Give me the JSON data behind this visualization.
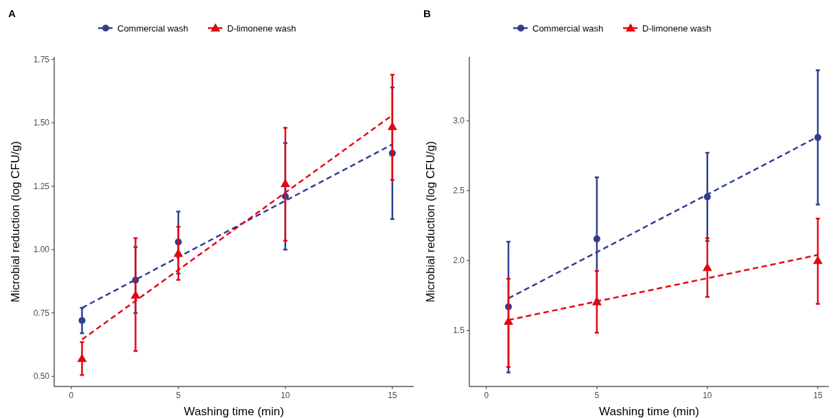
{
  "chart_data": [
    {
      "type": "scatter",
      "title": "A",
      "xlabel": "Washing time (min)",
      "ylabel": "Microbial reduction (log CFU/g)",
      "xlim": [
        -0.8,
        16
      ],
      "ylim": [
        0.46,
        1.76
      ],
      "xticks": [
        0,
        5,
        10,
        15
      ],
      "yticks": [
        {
          "value": 0.5,
          "label": "0.50"
        },
        {
          "value": 0.75,
          "label": "0.75"
        },
        {
          "value": 1.0,
          "label": "1.00"
        },
        {
          "value": 1.25,
          "label": "1.25"
        },
        {
          "value": 1.5,
          "label": "1.50"
        },
        {
          "value": 1.75,
          "label": "1.75"
        }
      ],
      "legend": "top",
      "series": [
        {
          "type": "line",
          "color": "#2e3f8f",
          "line_style": "dashed",
          "marker": "none",
          "x": [
            0.5,
            15
          ],
          "values": [
            0.77,
            1.415
          ]
        },
        {
          "type": "line",
          "color": "#e30613",
          "line_style": "dashed",
          "marker": "none",
          "x": [
            0.5,
            15
          ],
          "values": [
            0.645,
            1.53
          ]
        },
        {
          "name": "Commercial wash",
          "color": "#2e3f8f",
          "marker": "circle",
          "line_style": "dashed",
          "x": [
            0.5,
            3,
            5,
            10,
            15
          ],
          "values": [
            0.72,
            0.88,
            1.03,
            1.21,
            1.38
          ],
          "errors": [
            [
              0.67,
              0.77
            ],
            [
              0.75,
              1.01
            ],
            [
              0.905,
              1.15
            ],
            [
              1.0,
              1.42
            ],
            [
              1.12,
              1.64
            ]
          ]
        },
        {
          "name": "D-limonene wash",
          "color": "#e30613",
          "marker": "triangle",
          "line_style": "dashed",
          "x": [
            0.5,
            3,
            5,
            10,
            15
          ],
          "values": [
            0.57,
            0.82,
            0.985,
            1.26,
            1.485
          ],
          "errors": [
            [
              0.505,
              0.635
            ],
            [
              0.6,
              1.045
            ],
            [
              0.88,
              1.09
            ],
            [
              1.035,
              1.48
            ],
            [
              1.275,
              1.69
            ]
          ]
        }
      ]
    },
    {
      "type": "scatter",
      "title": "B",
      "xlabel": "Washing time (min)",
      "ylabel": "Microbial reduction (log CFU/g)",
      "xlim": [
        -0.77,
        15.5
      ],
      "ylim": [
        1.1,
        3.456
      ],
      "xticks": [
        0,
        5,
        10,
        15
      ],
      "yticks": [
        {
          "value": 1.5,
          "label": "1.5"
        },
        {
          "value": 2.0,
          "label": "2.0"
        },
        {
          "value": 2.5,
          "label": "2.5"
        },
        {
          "value": 3.0,
          "label": "3.0"
        }
      ],
      "legend": "top",
      "series": [
        {
          "type": "line",
          "color": "#2e3f8f",
          "line_style": "dashed",
          "marker": "none",
          "x": [
            1,
            15
          ],
          "values": [
            1.73,
            2.885
          ]
        },
        {
          "type": "line",
          "color": "#e30613",
          "line_style": "dashed",
          "marker": "none",
          "x": [
            1,
            15
          ],
          "values": [
            1.575,
            2.04
          ]
        },
        {
          "name": "Commercial wash",
          "color": "#2e3f8f",
          "marker": "circle",
          "line_style": "dashed",
          "x": [
            1,
            5,
            10,
            15
          ],
          "values": [
            1.67,
            2.155,
            2.455,
            2.88
          ],
          "errors": [
            [
              1.2,
              2.135
            ],
            [
              1.72,
              2.595
            ],
            [
              2.14,
              2.77
            ],
            [
              2.4,
              3.36
            ]
          ]
        },
        {
          "name": "D-limonene wash",
          "color": "#e30613",
          "marker": "triangle",
          "line_style": "dashed",
          "x": [
            1,
            5,
            10,
            15
          ],
          "values": [
            1.565,
            1.705,
            1.95,
            2.0
          ],
          "errors": [
            [
              1.24,
              1.87
            ],
            [
              1.485,
              1.925
            ],
            [
              1.74,
              2.16
            ],
            [
              1.69,
              2.3
            ]
          ]
        }
      ]
    }
  ]
}
